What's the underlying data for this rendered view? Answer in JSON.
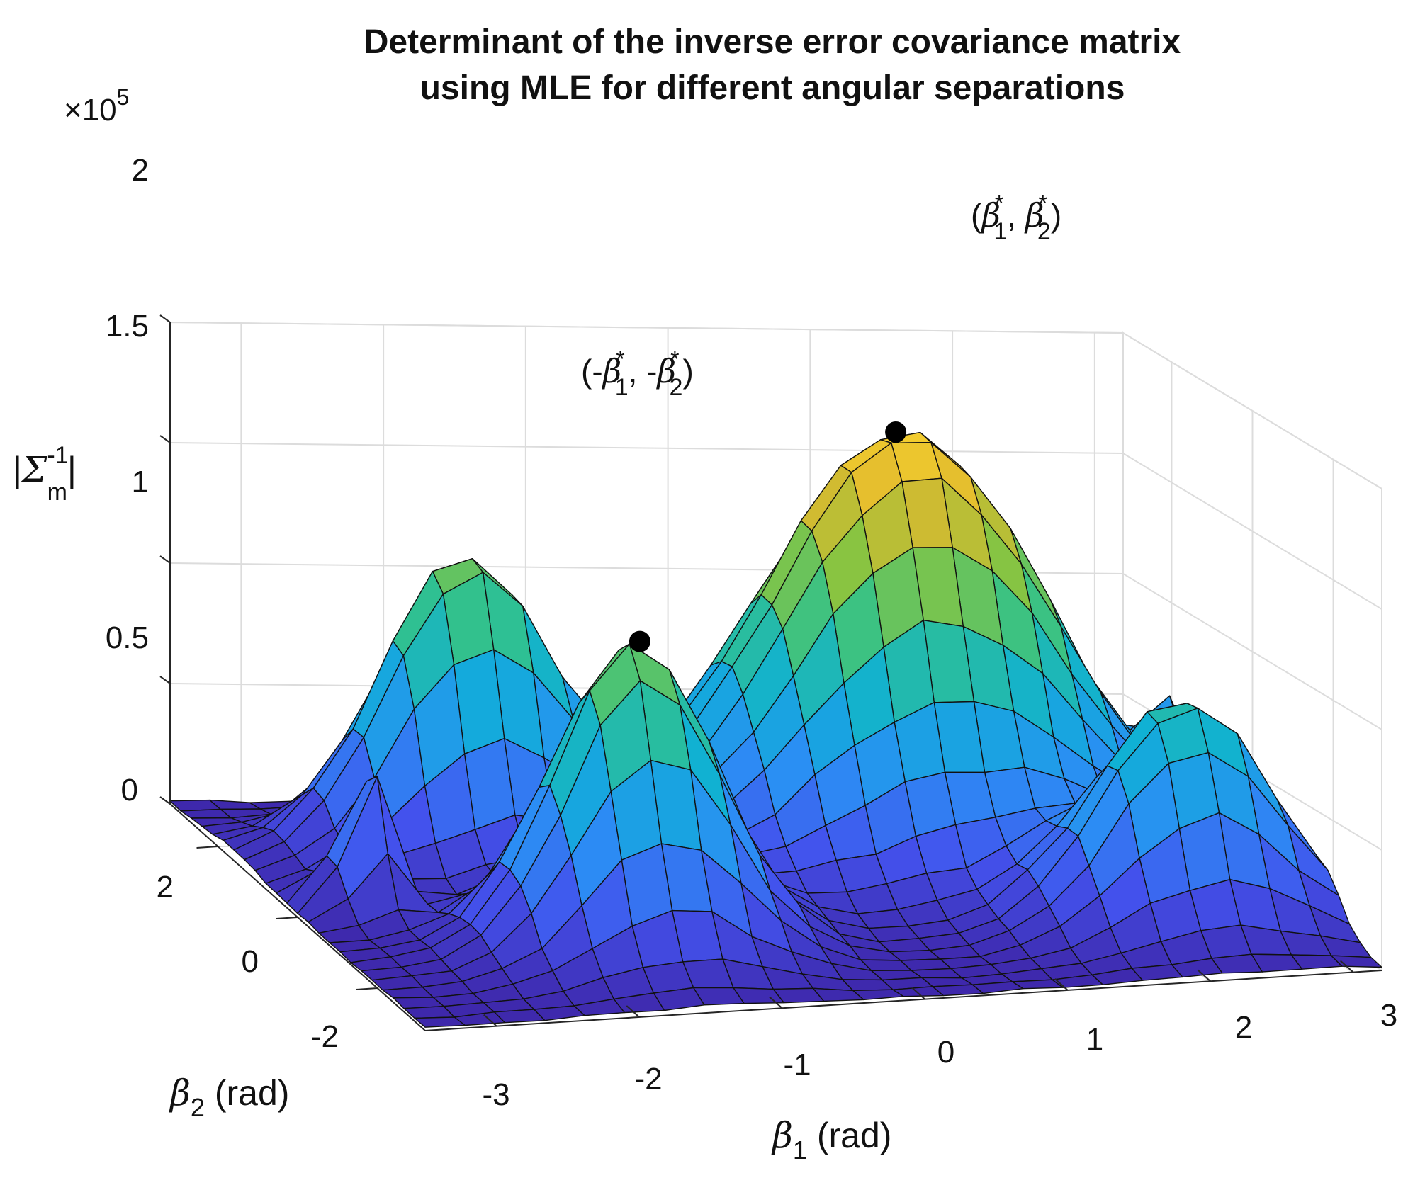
{
  "chart_data": {
    "type": "surface3d",
    "title_lines": [
      "Determinant of the inverse error covariance matrix",
      "using MLE for different angular separations"
    ],
    "zlabel": {
      "left": "|",
      "sym": "Σ",
      "sub": "m",
      "sup": "-1",
      "right": "|"
    },
    "xlabel": {
      "sym": "β",
      "sub": "1",
      "unit": " (rad)"
    },
    "ylabel": {
      "sym": "β",
      "sub": "2",
      "unit": " (rad)"
    },
    "zscale_label": {
      "prefix": "×10",
      "exp": "5"
    },
    "xlim": [
      -3.5,
      3.2
    ],
    "ylim": [
      -3.2,
      3.2
    ],
    "zlim": [
      0,
      2
    ],
    "xticks": [
      -3,
      -2,
      -1,
      0,
      1,
      2,
      3
    ],
    "xtick_labels": [
      "-3",
      "-2",
      "-1",
      "0",
      "1",
      "2",
      "3"
    ],
    "yticks": [
      -2,
      0,
      2
    ],
    "ytick_labels": [
      "-2",
      "0",
      "2"
    ],
    "zticks": [
      0,
      0.5,
      1,
      1.5,
      2
    ],
    "ztick_labels": [
      "0",
      "0.5",
      "1",
      "1.5",
      "2"
    ],
    "colormap": "parula",
    "colormap_stops": [
      "#3e26a8",
      "#4352ed",
      "#2b8ef4",
      "#0fb0d6",
      "#33c28a",
      "#8bc43f",
      "#e0b92e",
      "#f9d42f"
    ],
    "grid_color": "#dcdcdc",
    "edge_color": "#111111",
    "peaks": [
      {
        "x": 1.1,
        "y": 1.2,
        "z": 1.8,
        "wx": 1.0,
        "wy": 0.95
      },
      {
        "x": -1.5,
        "y": -1.3,
        "z": 1.28,
        "wx": 0.55,
        "wy": 0.65
      },
      {
        "x": -1.9,
        "y": 1.5,
        "z": 1.25,
        "wx": 0.6,
        "wy": 0.55
      },
      {
        "x": 2.3,
        "y": -1.5,
        "z": 0.95,
        "wx": 0.6,
        "wy": 0.6
      },
      {
        "x": -3.0,
        "y": 0.1,
        "z": 0.62,
        "wx": 0.15,
        "wy": 0.3
      },
      {
        "x": 3.0,
        "y": 1.0,
        "z": 0.45,
        "wx": 0.12,
        "wy": 0.3
      }
    ],
    "annotations": [
      {
        "label_left": "(",
        "l1": "β",
        "s1": "1",
        "mid": ", ",
        "l2": "β",
        "s2": "2",
        "label_right": ")",
        "x": 1.05,
        "y": 1.25,
        "z": 1.8
      },
      {
        "label_left": "(-",
        "l1": "β",
        "s1": "1",
        "mid": ", -",
        "l2": "β",
        "s2": "2",
        "label_right": ")",
        "x": -1.45,
        "y": -1.25,
        "z": 1.28
      }
    ],
    "annotation_sup": "*"
  }
}
